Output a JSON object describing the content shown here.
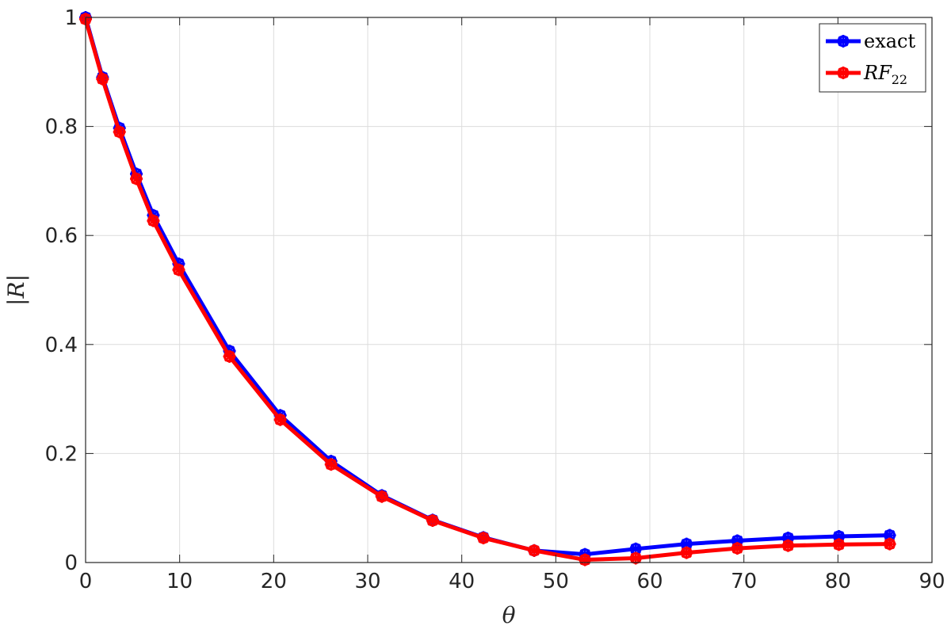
{
  "chart_data": {
    "type": "line",
    "xlabel": "θ",
    "ylabel": "|R|",
    "xlim": [
      0,
      90
    ],
    "ylim": [
      0,
      1
    ],
    "xticks": [
      0,
      10,
      20,
      30,
      40,
      50,
      60,
      70,
      80,
      90
    ],
    "yticks": [
      0,
      0.2,
      0.4,
      0.6,
      0.8,
      1
    ],
    "ytick_labels": [
      "0",
      "0.2",
      "0.4",
      "0.6",
      "0.8",
      "1"
    ],
    "grid": true,
    "legend_position": "top-right",
    "x": [
      0,
      1.8,
      3.6,
      5.4,
      7.2,
      9.9,
      15.3,
      20.7,
      26.1,
      31.5,
      36.9,
      42.3,
      47.7,
      53.1,
      58.5,
      63.9,
      69.3,
      74.7,
      80.1,
      85.5
    ],
    "series": [
      {
        "name": "exact",
        "color": "#0000ff",
        "values": [
          1.0,
          0.89,
          0.797,
          0.713,
          0.637,
          0.548,
          0.388,
          0.27,
          0.186,
          0.123,
          0.078,
          0.046,
          0.022,
          0.015,
          0.025,
          0.034,
          0.04,
          0.045,
          0.048,
          0.05
        ]
      },
      {
        "name": "RF",
        "name_subscript": "22",
        "color": "#ff0000",
        "values": [
          0.997,
          0.887,
          0.79,
          0.704,
          0.627,
          0.537,
          0.378,
          0.262,
          0.18,
          0.121,
          0.077,
          0.045,
          0.022,
          0.005,
          0.008,
          0.018,
          0.026,
          0.031,
          0.033,
          0.034
        ]
      }
    ]
  }
}
